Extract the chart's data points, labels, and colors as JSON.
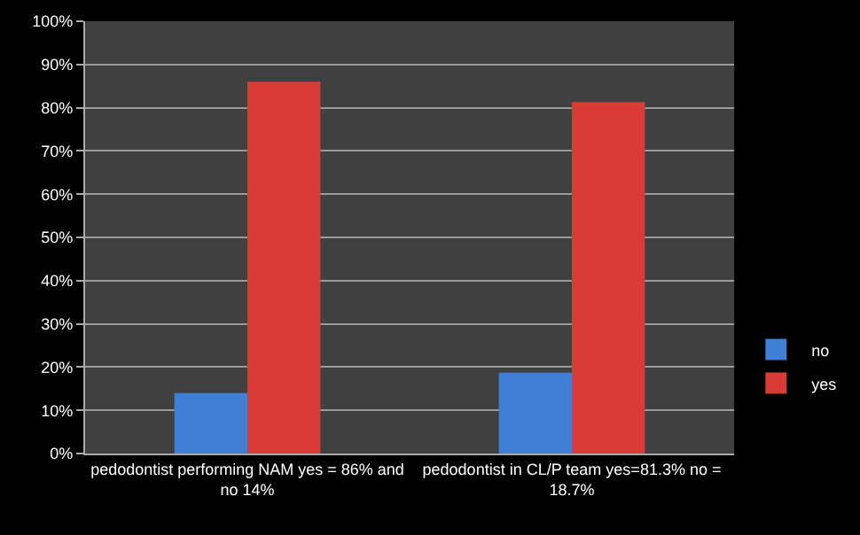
{
  "chart_data": {
    "type": "bar",
    "categories": [
      "pedodontist performing NAM yes = 86% and no 14%",
      "pedodontist in CL/P team yes=81.3% no = 18.7%"
    ],
    "series": [
      {
        "name": "no",
        "color": "#3f7fd6",
        "values": [
          14,
          18.7
        ]
      },
      {
        "name": "yes",
        "color": "#d93b37",
        "values": [
          86,
          81.3
        ]
      }
    ],
    "ylim": [
      0,
      100
    ],
    "yticks": [
      {
        "value": 0,
        "label": "0%"
      },
      {
        "value": 10,
        "label": "10%"
      },
      {
        "value": 20,
        "label": "20%"
      },
      {
        "value": 30,
        "label": "30%"
      },
      {
        "value": 40,
        "label": "40%"
      },
      {
        "value": 50,
        "label": "50%"
      },
      {
        "value": 60,
        "label": "60%"
      },
      {
        "value": 70,
        "label": "70%"
      },
      {
        "value": 80,
        "label": "80%"
      },
      {
        "value": 90,
        "label": "90%"
      },
      {
        "value": 100,
        "label": "100%"
      }
    ],
    "grid": "y",
    "legend": "bottom right"
  }
}
